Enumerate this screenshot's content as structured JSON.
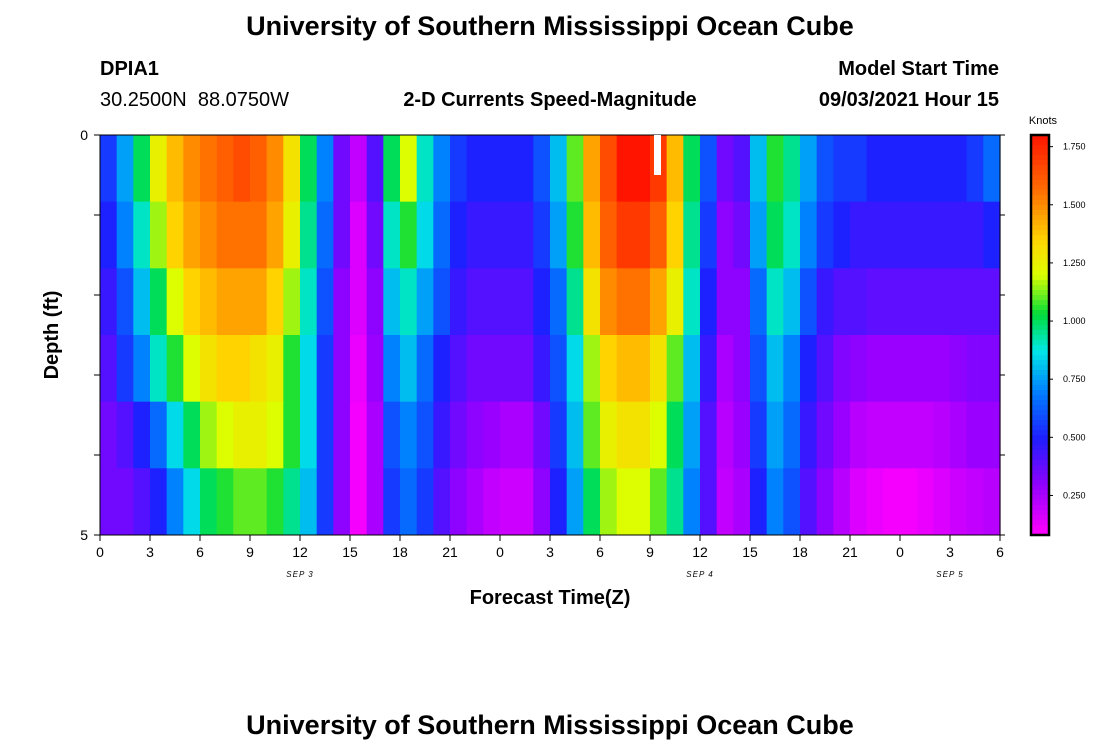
{
  "header": {
    "title": "University of Southern Mississippi Ocean Cube",
    "station": "DPIA1",
    "coords": "30.2500N  88.0750W",
    "subtitle": "2-D Currents Speed-Magnitude",
    "start_label": "Model Start Time",
    "start_value": "09/03/2021 Hour 15"
  },
  "footer": {
    "title": "University of Southern Mississippi Ocean Cube"
  },
  "chart_data": {
    "type": "heatmap",
    "title": "2-D Currents Speed-Magnitude",
    "xlabel": "Forecast Time(Z)",
    "ylabel": "Depth (ft)",
    "x_hours_range": [
      0,
      54
    ],
    "x_tick_labels": [
      "0",
      "3",
      "6",
      "9",
      "12",
      "15",
      "18",
      "21",
      "0",
      "3",
      "6",
      "9",
      "12",
      "15",
      "18",
      "21",
      "0",
      "3",
      "6"
    ],
    "date_labels": [
      {
        "text": "SEP 3",
        "hour": 12
      },
      {
        "text": "SEP 4",
        "hour": 36
      },
      {
        "text": "SEP 5",
        "hour": 51
      }
    ],
    "y_range": [
      0,
      5
    ],
    "y_tick_labels": [
      {
        "value": 0,
        "label": "0"
      },
      {
        "value": 5,
        "label": "5"
      }
    ],
    "colorbar": {
      "title": "Knots",
      "min": 0.08,
      "max": 1.8,
      "tick_labels": [
        {
          "value": 0.25,
          "label": "0.250"
        },
        {
          "value": 0.5,
          "label": "0.500"
        },
        {
          "value": 0.75,
          "label": "0.750"
        },
        {
          "value": 1.0,
          "label": "1.000"
        },
        {
          "value": 1.25,
          "label": "1.250"
        },
        {
          "value": 1.5,
          "label": "1.500"
        },
        {
          "value": 1.75,
          "label": "1.750"
        }
      ]
    },
    "series": [
      {
        "name": "depth-layer-1",
        "values": [
          0.55,
          0.75,
          1.0,
          1.25,
          1.4,
          1.5,
          1.55,
          1.6,
          1.65,
          1.6,
          1.5,
          1.3,
          1.0,
          0.7,
          0.35,
          0.2,
          0.4,
          1.0,
          1.2,
          0.9,
          0.7,
          0.55,
          0.5,
          0.5,
          0.5,
          0.5,
          0.6,
          0.8,
          1.1,
          1.45,
          1.65,
          1.8,
          1.8,
          1.7,
          1.4,
          1.0,
          0.6,
          0.35,
          0.4,
          0.8,
          1.05,
          0.95,
          0.75,
          0.6,
          0.55,
          0.55,
          0.5,
          0.5,
          0.5,
          0.5,
          0.5,
          0.5,
          0.55,
          0.65
        ]
      },
      {
        "name": "depth-layer-2",
        "values": [
          0.5,
          0.7,
          0.9,
          1.15,
          1.35,
          1.45,
          1.5,
          1.55,
          1.55,
          1.55,
          1.45,
          1.25,
          0.95,
          0.65,
          0.35,
          0.15,
          0.35,
          0.9,
          1.05,
          0.85,
          0.65,
          0.5,
          0.45,
          0.45,
          0.45,
          0.45,
          0.55,
          0.75,
          1.05,
          1.4,
          1.6,
          1.7,
          1.7,
          1.6,
          1.35,
          0.95,
          0.55,
          0.3,
          0.35,
          0.75,
          1.0,
          0.9,
          0.7,
          0.55,
          0.5,
          0.45,
          0.45,
          0.45,
          0.45,
          0.45,
          0.45,
          0.45,
          0.45,
          0.5
        ]
      },
      {
        "name": "depth-layer-3",
        "values": [
          0.45,
          0.6,
          0.8,
          1.0,
          1.2,
          1.35,
          1.4,
          1.45,
          1.45,
          1.45,
          1.35,
          1.15,
          0.9,
          0.6,
          0.3,
          0.15,
          0.3,
          0.8,
          0.9,
          0.75,
          0.6,
          0.45,
          0.4,
          0.4,
          0.4,
          0.4,
          0.5,
          0.65,
          0.95,
          1.3,
          1.5,
          1.55,
          1.55,
          1.45,
          1.25,
          0.9,
          0.5,
          0.3,
          0.3,
          0.65,
          0.9,
          0.8,
          0.6,
          0.45,
          0.4,
          0.4,
          0.38,
          0.38,
          0.38,
          0.38,
          0.38,
          0.38,
          0.38,
          0.38
        ]
      },
      {
        "name": "depth-layer-4",
        "values": [
          0.4,
          0.55,
          0.7,
          0.9,
          1.05,
          1.2,
          1.3,
          1.35,
          1.35,
          1.3,
          1.25,
          1.05,
          0.85,
          0.55,
          0.3,
          0.12,
          0.28,
          0.7,
          0.8,
          0.65,
          0.5,
          0.4,
          0.35,
          0.35,
          0.35,
          0.35,
          0.45,
          0.6,
          0.85,
          1.15,
          1.35,
          1.4,
          1.4,
          1.3,
          1.1,
          0.8,
          0.45,
          0.25,
          0.3,
          0.6,
          0.8,
          0.7,
          0.5,
          0.4,
          0.32,
          0.3,
          0.28,
          0.28,
          0.28,
          0.28,
          0.28,
          0.3,
          0.32,
          0.32
        ]
      },
      {
        "name": "depth-layer-5",
        "values": [
          0.35,
          0.4,
          0.5,
          0.65,
          0.85,
          1.0,
          1.15,
          1.2,
          1.25,
          1.25,
          1.2,
          1.05,
          0.85,
          0.55,
          0.3,
          0.1,
          0.25,
          0.6,
          0.7,
          0.6,
          0.45,
          0.35,
          0.3,
          0.28,
          0.25,
          0.25,
          0.35,
          0.55,
          0.8,
          1.1,
          1.25,
          1.3,
          1.3,
          1.2,
          1.0,
          0.75,
          0.4,
          0.22,
          0.28,
          0.55,
          0.75,
          0.65,
          0.45,
          0.35,
          0.28,
          0.22,
          0.2,
          0.2,
          0.2,
          0.2,
          0.22,
          0.25,
          0.28,
          0.28
        ]
      },
      {
        "name": "depth-layer-6",
        "values": [
          0.35,
          0.35,
          0.4,
          0.5,
          0.7,
          0.85,
          1.0,
          1.05,
          1.1,
          1.1,
          1.05,
          0.95,
          0.8,
          0.55,
          0.3,
          0.1,
          0.25,
          0.55,
          0.65,
          0.55,
          0.4,
          0.3,
          0.25,
          0.2,
          0.18,
          0.18,
          0.3,
          0.5,
          0.75,
          1.0,
          1.15,
          1.2,
          1.2,
          1.1,
          0.95,
          0.7,
          0.4,
          0.2,
          0.25,
          0.5,
          0.7,
          0.6,
          0.4,
          0.3,
          0.22,
          0.15,
          0.12,
          0.1,
          0.1,
          0.12,
          0.15,
          0.18,
          0.2,
          0.22
        ]
      }
    ],
    "annotation": "white bar near hour 33, surface layer"
  }
}
